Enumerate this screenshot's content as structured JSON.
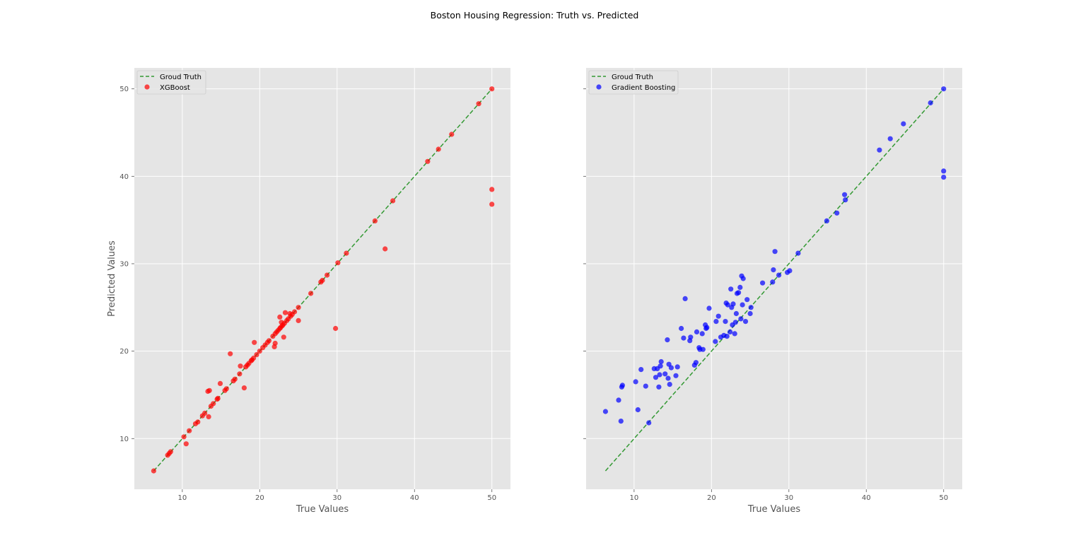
{
  "figure": {
    "suptitle": "Boston Housing Regression: Truth vs. Predicted",
    "background": "#ffffff",
    "axes_facecolor": "#e5e5e5",
    "grid_color": "#ffffff"
  },
  "chart_data": [
    {
      "type": "scatter",
      "title": "",
      "xlabel": "True Values",
      "ylabel": "Predicted Values",
      "xlim": [
        3.8,
        52.4
      ],
      "ylim": [
        4.2,
        52.4
      ],
      "xticks": [
        10,
        20,
        30,
        40,
        50
      ],
      "yticks": [
        10,
        20,
        30,
        40,
        50
      ],
      "show_yticklabels": true,
      "grid": true,
      "legend_position": "upper-left",
      "line": {
        "name": "Groud Truth",
        "style": "dashed",
        "color": "#339933",
        "x": [
          6.3,
          8.1,
          8.4,
          10.2,
          10.9,
          11.7,
          12.7,
          13.1,
          13.8,
          14.5,
          15.6,
          16.6,
          17.5,
          18.4,
          18.9,
          19.3,
          20.0,
          20.6,
          21.0,
          21.7,
          22.0,
          22.3,
          22.6,
          22.9,
          23.2,
          23.7,
          24.1,
          24.5,
          25.0,
          26.6,
          28.1,
          28.7,
          30.1,
          31.2,
          34.9,
          37.2,
          41.7,
          43.1,
          44.8,
          48.3,
          50.0
        ],
        "y": [
          6.3,
          8.1,
          8.4,
          10.2,
          10.9,
          11.7,
          12.7,
          13.1,
          13.8,
          14.5,
          15.6,
          16.6,
          17.5,
          18.4,
          18.9,
          19.3,
          20.0,
          20.6,
          21.0,
          21.7,
          22.0,
          22.3,
          22.6,
          22.9,
          23.2,
          23.7,
          24.1,
          24.5,
          25.0,
          26.6,
          28.1,
          28.7,
          30.1,
          31.2,
          34.9,
          37.2,
          41.7,
          43.1,
          44.8,
          48.3,
          50.0
        ]
      },
      "series": [
        {
          "name": "XGBoost",
          "color": "#ff0000",
          "x": [
            6.3,
            8.1,
            8.3,
            8.5,
            10.2,
            10.5,
            10.9,
            11.7,
            12.0,
            12.6,
            12.9,
            13.3,
            13.4,
            13.5,
            13.7,
            14.0,
            14.5,
            14.6,
            14.9,
            15.5,
            15.7,
            16.2,
            16.6,
            16.8,
            17.4,
            17.5,
            18.0,
            18.2,
            18.4,
            18.6,
            18.9,
            19.0,
            19.2,
            19.3,
            19.6,
            20.0,
            20.4,
            20.7,
            21.0,
            21.2,
            21.7,
            21.9,
            22.0,
            22.0,
            22.2,
            22.4,
            22.6,
            22.6,
            22.7,
            22.8,
            22.9,
            23.0,
            23.1,
            23.2,
            23.3,
            23.5,
            23.7,
            23.9,
            24.0,
            24.2,
            24.5,
            25.0,
            25.0,
            26.6,
            27.9,
            28.1,
            28.7,
            29.8,
            30.1,
            31.2,
            34.9,
            36.2,
            37.2,
            41.7,
            43.1,
            44.8,
            48.3,
            50.0,
            50.0,
            50.0
          ],
          "y": [
            6.3,
            8.1,
            8.3,
            8.5,
            10.2,
            9.4,
            10.9,
            11.7,
            11.9,
            12.6,
            12.9,
            15.4,
            12.5,
            15.5,
            13.7,
            14.0,
            14.5,
            14.6,
            16.3,
            15.5,
            15.7,
            19.7,
            16.6,
            16.8,
            17.4,
            18.3,
            15.8,
            18.2,
            18.4,
            18.6,
            18.9,
            19.0,
            19.2,
            21.0,
            19.6,
            20.0,
            20.4,
            20.7,
            21.0,
            21.2,
            21.7,
            20.5,
            20.9,
            22.0,
            22.2,
            22.4,
            22.6,
            23.9,
            22.7,
            23.3,
            22.9,
            23.0,
            21.6,
            23.2,
            24.4,
            23.5,
            23.7,
            24.3,
            24.0,
            24.2,
            24.5,
            25.0,
            23.5,
            26.6,
            27.9,
            28.1,
            28.7,
            22.6,
            30.1,
            31.2,
            34.9,
            31.7,
            37.2,
            41.7,
            43.1,
            44.8,
            48.3,
            50.0,
            38.5,
            36.8
          ]
        }
      ]
    },
    {
      "type": "scatter",
      "title": "",
      "xlabel": "True Values",
      "ylabel": "",
      "xlim": [
        3.8,
        52.4
      ],
      "ylim": [
        4.2,
        52.4
      ],
      "xticks": [
        10,
        20,
        30,
        40,
        50
      ],
      "yticks": [
        10,
        20,
        30,
        40,
        50
      ],
      "show_yticklabels": false,
      "grid": true,
      "legend_position": "upper-left",
      "line": {
        "name": "Groud Truth",
        "style": "dashed",
        "color": "#339933",
        "x": [
          6.3,
          8.1,
          8.4,
          10.2,
          10.9,
          11.7,
          12.7,
          13.1,
          13.8,
          14.5,
          15.6,
          16.6,
          17.5,
          18.4,
          18.9,
          19.3,
          20.0,
          20.6,
          21.0,
          21.7,
          22.0,
          22.3,
          22.6,
          22.9,
          23.2,
          23.7,
          24.1,
          24.5,
          25.0,
          26.6,
          28.1,
          28.7,
          30.1,
          31.2,
          34.9,
          37.2,
          41.7,
          43.1,
          44.8,
          48.3,
          50.0
        ],
        "y": [
          6.3,
          8.1,
          8.4,
          10.2,
          10.9,
          11.7,
          12.7,
          13.1,
          13.8,
          14.5,
          15.6,
          16.6,
          17.5,
          18.4,
          18.9,
          19.3,
          20.0,
          20.6,
          21.0,
          21.7,
          22.0,
          22.3,
          22.6,
          22.9,
          23.2,
          23.7,
          24.1,
          24.5,
          25.0,
          26.6,
          28.1,
          28.7,
          30.1,
          31.2,
          34.9,
          37.2,
          41.7,
          43.1,
          44.8,
          48.3,
          50.0
        ]
      },
      "series": [
        {
          "name": "Gradient Boosting",
          "color": "#0000ff",
          "x": [
            6.3,
            8.0,
            8.3,
            8.4,
            8.5,
            10.2,
            10.5,
            10.9,
            11.5,
            11.9,
            12.6,
            12.8,
            13.0,
            13.2,
            13.3,
            13.4,
            13.5,
            14.0,
            14.3,
            14.4,
            14.5,
            14.6,
            14.8,
            15.4,
            15.6,
            16.1,
            16.4,
            16.6,
            17.2,
            17.3,
            17.8,
            18.0,
            18.1,
            18.4,
            18.5,
            18.8,
            18.9,
            19.2,
            19.3,
            19.4,
            19.7,
            20.5,
            20.6,
            20.9,
            21.2,
            21.6,
            21.8,
            21.9,
            22.0,
            22.1,
            22.4,
            22.5,
            22.6,
            22.7,
            22.8,
            23.0,
            23.1,
            23.2,
            23.3,
            23.5,
            23.7,
            23.8,
            23.9,
            24.0,
            24.1,
            24.4,
            24.6,
            25.0,
            25.1,
            26.6,
            27.9,
            28.0,
            28.2,
            28.7,
            29.8,
            30.1,
            31.2,
            34.9,
            36.2,
            37.2,
            37.3,
            41.7,
            43.1,
            44.8,
            48.3,
            50.0,
            50.0,
            50.0
          ],
          "y": [
            13.1,
            14.4,
            12.0,
            15.9,
            16.1,
            16.5,
            13.3,
            17.9,
            16.0,
            11.8,
            18.0,
            17.0,
            18.0,
            15.9,
            17.3,
            18.3,
            18.8,
            17.4,
            21.3,
            16.9,
            18.5,
            16.2,
            18.1,
            17.2,
            18.2,
            22.6,
            21.5,
            26.0,
            21.2,
            21.6,
            18.4,
            18.7,
            22.2,
            20.4,
            20.2,
            22.0,
            20.2,
            23.0,
            22.6,
            22.7,
            24.9,
            21.1,
            23.4,
            24.0,
            21.6,
            21.8,
            23.4,
            25.5,
            21.7,
            25.3,
            22.2,
            27.1,
            25.0,
            23.0,
            25.4,
            22.0,
            23.3,
            24.3,
            26.6,
            26.7,
            27.3,
            23.7,
            28.6,
            25.3,
            28.3,
            23.4,
            25.9,
            24.3,
            25.0,
            27.8,
            27.9,
            29.3,
            31.4,
            28.7,
            29.0,
            29.2,
            31.2,
            34.9,
            35.8,
            37.9,
            37.3,
            43.0,
            44.3,
            46.0,
            48.4,
            50.0,
            40.6,
            39.9
          ]
        }
      ]
    }
  ]
}
